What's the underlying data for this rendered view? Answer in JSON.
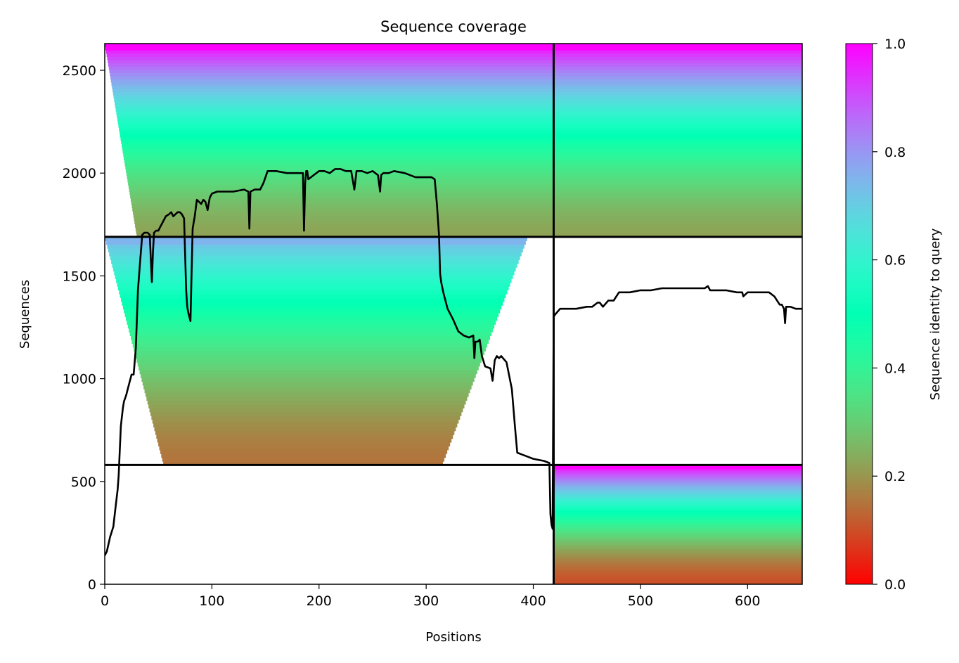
{
  "chart_data": {
    "type": "heatmap",
    "title": "Sequence coverage",
    "xlabel": "Positions",
    "ylabel": "Sequences",
    "xlim": [
      0,
      651
    ],
    "ylim": [
      0,
      2630
    ],
    "x_ticks": [
      0,
      100,
      200,
      300,
      400,
      500,
      600
    ],
    "y_ticks": [
      0,
      500,
      1000,
      1500,
      2000,
      2500
    ],
    "colorbar": {
      "label": "Sequence identity to query",
      "range": [
        0,
        1
      ],
      "ticks": [
        "0.0",
        "0.2",
        "0.4",
        "0.6",
        "0.8",
        "1.0"
      ],
      "colormap": "rainbow_r"
    },
    "segment_boundaries": {
      "positions": [
        419
      ],
      "sequence_counts": [
        580,
        1690
      ]
    },
    "blocks": [
      {
        "x_range": [
          0,
          419
        ],
        "y_range": [
          1690,
          2630
        ],
        "identity_top": 1.0,
        "identity_bottom": 0.22,
        "coverage_note": "full span 0-419"
      },
      {
        "x_range": [
          419,
          651
        ],
        "y_range": [
          1690,
          2630
        ],
        "identity_top": 1.0,
        "identity_bottom": 0.22
      },
      {
        "x_range": [
          0,
          419
        ],
        "y_range": [
          580,
          1690
        ],
        "identity_top": 0.75,
        "identity_bottom": 0.15
      },
      {
        "x_range": [
          419,
          651
        ],
        "y_range": [
          0,
          580
        ],
        "identity_top": 1.0,
        "identity_bottom": 0.1
      }
    ],
    "series": [
      {
        "type": "line",
        "x": [
          0,
          2,
          5,
          8,
          10,
          12,
          13,
          15,
          17,
          18,
          20,
          22,
          25,
          27,
          29,
          31,
          33,
          35,
          37,
          40,
          42,
          44,
          45,
          46,
          48,
          50,
          52,
          55,
          57,
          60,
          62,
          64,
          66,
          68,
          70,
          72,
          74,
          76,
          77,
          78,
          80,
          81,
          82,
          84,
          86,
          88,
          90,
          92,
          94,
          96,
          98,
          100,
          105,
          110,
          120,
          130,
          134,
          135,
          136,
          140,
          145,
          148,
          150,
          152,
          155,
          160,
          170,
          180,
          185,
          186,
          187,
          188,
          189,
          190,
          195,
          200,
          205,
          210,
          215,
          220,
          225,
          230,
          233,
          235,
          236,
          238,
          240,
          245,
          250,
          255,
          257,
          258,
          260,
          265,
          270,
          280,
          290,
          300,
          305,
          308,
          310,
          312,
          313,
          314,
          316,
          320,
          325,
          330,
          335,
          340,
          344,
          345,
          346,
          348,
          350,
          352,
          355,
          360,
          362,
          364,
          366,
          368,
          370,
          375,
          380,
          383,
          385,
          390,
          395,
          400,
          410,
          415,
          416,
          417,
          418,
          419,
          420,
          425,
          430,
          440,
          450,
          455,
          460,
          462,
          465,
          470,
          475,
          480,
          490,
          500,
          510,
          520,
          530,
          540,
          550,
          560,
          563,
          565,
          570,
          580,
          590,
          595,
          596,
          600,
          610,
          620,
          625,
          630,
          632,
          634,
          635,
          636,
          638,
          640,
          645,
          651
        ],
        "y": [
          140,
          160,
          230,
          280,
          370,
          460,
          530,
          770,
          860,
          890,
          920,
          960,
          1020,
          1020,
          1150,
          1430,
          1570,
          1700,
          1710,
          1710,
          1700,
          1470,
          1620,
          1710,
          1720,
          1720,
          1740,
          1770,
          1790,
          1800,
          1810,
          1790,
          1800,
          1810,
          1810,
          1800,
          1780,
          1430,
          1350,
          1320,
          1280,
          1500,
          1730,
          1790,
          1870,
          1860,
          1850,
          1870,
          1860,
          1820,
          1880,
          1900,
          1910,
          1910,
          1910,
          1920,
          1910,
          1730,
          1910,
          1920,
          1920,
          1950,
          1980,
          2010,
          2010,
          2010,
          2000,
          2000,
          2000,
          1720,
          1950,
          2010,
          2010,
          1970,
          1990,
          2010,
          2010,
          2000,
          2020,
          2020,
          2010,
          2010,
          1920,
          2010,
          2010,
          2010,
          2010,
          2000,
          2010,
          1990,
          1910,
          1990,
          2000,
          2000,
          2010,
          2000,
          1980,
          1980,
          1980,
          1970,
          1850,
          1700,
          1510,
          1470,
          1420,
          1340,
          1290,
          1230,
          1210,
          1200,
          1210,
          1100,
          1180,
          1180,
          1190,
          1110,
          1060,
          1050,
          990,
          1090,
          1110,
          1100,
          1110,
          1080,
          950,
          760,
          640,
          630,
          620,
          610,
          600,
          590,
          340,
          290,
          270,
          1300,
          1310,
          1340,
          1340,
          1340,
          1350,
          1350,
          1370,
          1370,
          1350,
          1380,
          1380,
          1420,
          1420,
          1430,
          1430,
          1440,
          1440,
          1440,
          1440,
          1440,
          1450,
          1430,
          1430,
          1430,
          1420,
          1420,
          1400,
          1420,
          1420,
          1420,
          1400,
          1360,
          1360,
          1340,
          1270,
          1350,
          1350,
          1350,
          1340,
          1340
        ]
      }
    ]
  }
}
